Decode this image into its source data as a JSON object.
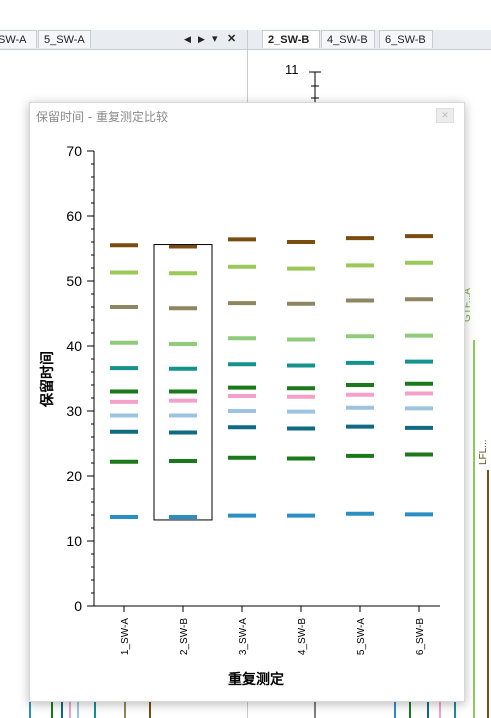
{
  "left_panel": {
    "tabs": [
      {
        "label": "SW-A",
        "active": false
      },
      {
        "label": "5_SW-A",
        "active": false
      }
    ],
    "controls": {
      "prev": "◀",
      "next": "▶",
      "menu": "▾",
      "close": "✕"
    }
  },
  "right_panel": {
    "tabs": [
      {
        "label": "2_SW-B",
        "active": true
      },
      {
        "label": "4_SW-B",
        "active": false
      },
      {
        "label": "6_SW-B",
        "active": false
      }
    ],
    "y_top_label": "11",
    "side_labels": [
      "GTF...A",
      "LFL..."
    ]
  },
  "dialog": {
    "title": "保留时间 - 重复测定比较",
    "close_icon": "close-icon"
  },
  "chart_data": {
    "type": "scatter",
    "xlabel": "重复测定",
    "ylabel": "保留时间",
    "ylim": [
      0,
      70
    ],
    "yticks": [
      0,
      10,
      20,
      30,
      40,
      50,
      60,
      70
    ],
    "categories": [
      "1_SW-A",
      "2_SW-B",
      "3_SW-A",
      "4_SW-B",
      "5_SW-A",
      "6_SW-B"
    ],
    "selected_category": "2_SW-B",
    "series": [
      {
        "color": "#2b8fc4",
        "values": [
          13.7,
          13.7,
          13.9,
          13.9,
          14.2,
          14.1
        ]
      },
      {
        "color": "#1a7a1a",
        "values": [
          22.2,
          22.3,
          22.8,
          22.7,
          23.1,
          23.3
        ]
      },
      {
        "color": "#0f6a82",
        "values": [
          26.8,
          26.7,
          27.5,
          27.3,
          27.6,
          27.4
        ]
      },
      {
        "color": "#9cc4e0",
        "values": [
          29.3,
          29.3,
          30.0,
          29.9,
          30.5,
          30.4
        ]
      },
      {
        "color": "#f4a0c8",
        "values": [
          31.4,
          31.6,
          32.3,
          32.2,
          32.5,
          32.7
        ]
      },
      {
        "color": "#1a7a1a",
        "values": [
          33.0,
          33.0,
          33.6,
          33.5,
          34.0,
          34.2
        ]
      },
      {
        "color": "#14938c",
        "values": [
          36.6,
          36.5,
          37.2,
          37.0,
          37.4,
          37.6
        ]
      },
      {
        "color": "#8fcb7a",
        "values": [
          40.5,
          40.3,
          41.2,
          41.0,
          41.5,
          41.6
        ]
      },
      {
        "color": "#8f8661",
        "values": [
          46.0,
          45.8,
          46.6,
          46.5,
          47.0,
          47.2
        ]
      },
      {
        "color": "#9ac95a",
        "values": [
          51.3,
          51.2,
          52.2,
          51.9,
          52.4,
          52.8
        ]
      },
      {
        "color": "#7a4c10",
        "values": [
          55.5,
          55.3,
          56.4,
          56.0,
          56.6,
          56.9
        ]
      }
    ]
  }
}
